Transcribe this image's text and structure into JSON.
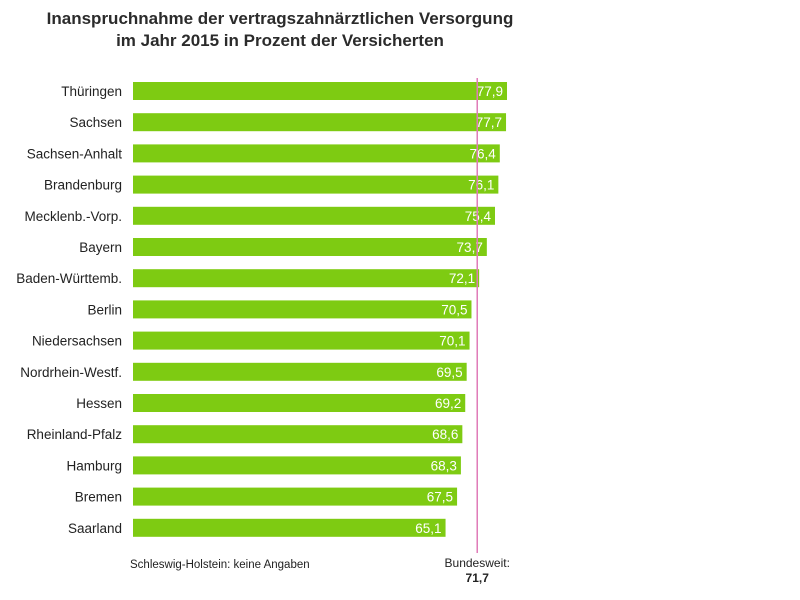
{
  "chart_data": {
    "type": "bar",
    "orientation": "horizontal",
    "title_line1": "Inanspruchnahme der vertragszahnärztlichen Versorgung",
    "title_line2": "im Jahr 2015 in Prozent der Versicherten",
    "categories": [
      "Thüringen",
      "Sachsen",
      "Sachsen-Anhalt",
      "Brandenburg",
      "Mecklenb.-Vorp.",
      "Bayern",
      "Baden-Württemb.",
      "Berlin",
      "Niedersachsen",
      "Nordrhein-Westf.",
      "Hessen",
      "Rheinland-Pfalz",
      "Hamburg",
      "Bremen",
      "Saarland"
    ],
    "values": [
      77.9,
      77.7,
      76.4,
      76.1,
      75.4,
      73.7,
      72.1,
      70.5,
      70.1,
      69.5,
      69.2,
      68.6,
      68.3,
      67.5,
      65.1
    ],
    "value_labels": [
      "77,9",
      "77,7",
      "76,4",
      "76,1",
      "75,4",
      "73,7",
      "72,1",
      "70,5",
      "70,1",
      "69,5",
      "69,2",
      "68,6",
      "68,3",
      "67,5",
      "65,1"
    ],
    "xlim": [
      0,
      77.9
    ],
    "reference_line": {
      "label": "Bundesweit:",
      "value": 71.7,
      "value_label": "71,7",
      "color": "#e07bb8"
    },
    "footnote": "Schleswig-Holstein: keine Angaben",
    "bar_color": "#7ecb12",
    "grid": false,
    "legend": "none"
  }
}
